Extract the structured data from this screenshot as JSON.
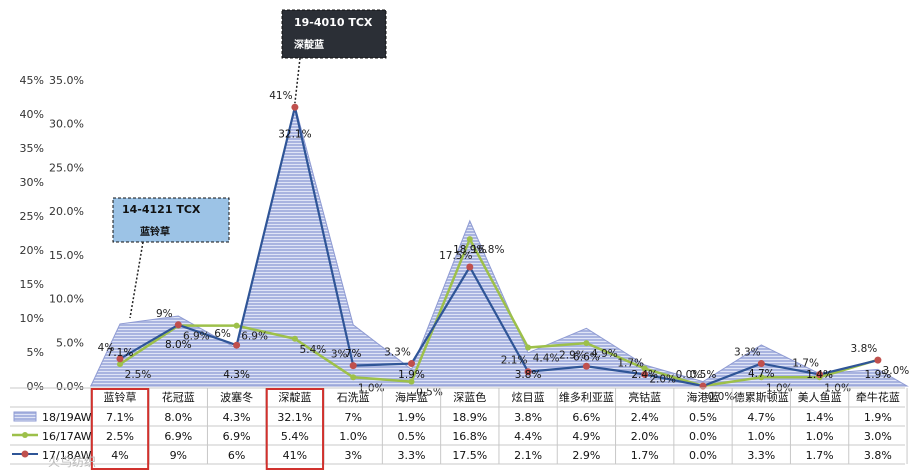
{
  "chart_data": {
    "type": "area",
    "categories": [
      "蓝铃草",
      "花冠蓝",
      "波塞冬",
      "深靛蓝",
      "石洗蓝",
      "海岸蓝",
      "深蓝色",
      "炫目蓝",
      "维多利亚蓝",
      "亮钴蓝",
      "海港蓝",
      "德累斯顿蓝",
      "美人鱼蓝",
      "牵牛花蓝"
    ],
    "series": [
      {
        "name": "18/19AW",
        "kind": "area",
        "axis": "left",
        "values": [
          7.1,
          8.0,
          4.3,
          32.1,
          7,
          1.9,
          18.9,
          3.8,
          6.6,
          2.4,
          0.5,
          4.7,
          1.4,
          1.9
        ],
        "labels": [
          "7.1%",
          "8.0%",
          "4.3%",
          "32.1%",
          "7%",
          "1.9%",
          "18.9%",
          "3.8%",
          "6.6%",
          "2.4%",
          "0.5%",
          "4.7%",
          "1.4%",
          "1.9%"
        ]
      },
      {
        "name": "16/17AW",
        "kind": "line",
        "axis": "left",
        "values": [
          2.5,
          6.9,
          6.9,
          5.4,
          1.0,
          0.5,
          16.8,
          4.4,
          4.9,
          2.0,
          0.0,
          1.0,
          1.0,
          3.0
        ],
        "labels": [
          "2.5%",
          "6.9%",
          "6.9%",
          "5.4%",
          "1.0%",
          "0.5%",
          "16.8%",
          "4.4%",
          "4.9%",
          "2.0%",
          "0.0%",
          "1.0%",
          "1.0%",
          "3.0%"
        ]
      },
      {
        "name": "17/18AW",
        "kind": "line",
        "axis": "right",
        "values": [
          4,
          9,
          6,
          41,
          3,
          3.3,
          17.5,
          2.1,
          2.9,
          1.7,
          0.0,
          3.3,
          1.7,
          3.8
        ],
        "labels": [
          "4%",
          "9%",
          "6%",
          "41%",
          "3%",
          "3.3%",
          "17.5%",
          "2.1%",
          "2.9%",
          "1.7%",
          "0.0%",
          "3.3%",
          "1.7%",
          "3.8%"
        ]
      }
    ],
    "table": {
      "rows": [
        {
          "name": "18/19AW",
          "cells": [
            "7.1%",
            "8.0%",
            "4.3%",
            "32.1%",
            "7%",
            "1.9%",
            "18.9%",
            "3.8%",
            "6.6%",
            "2.4%",
            "0.5%",
            "4.7%",
            "1.4%",
            "1.9%"
          ]
        },
        {
          "name": "16/17AW",
          "cells": [
            "2.5%",
            "6.9%",
            "6.9%",
            "5.4%",
            "1.0%",
            "0.5%",
            "16.8%",
            "4.4%",
            "4.9%",
            "2.0%",
            "0.0%",
            "1.0%",
            "1.0%",
            "3.0%"
          ]
        },
        {
          "name": "17/18AW",
          "cells": [
            "4%",
            "9%",
            "6%",
            "41%",
            "3%",
            "3.3%",
            "17.5%",
            "2.1%",
            "2.9%",
            "1.7%",
            "0.0%",
            "3.3%",
            "1.7%",
            "3.8%"
          ]
        }
      ]
    },
    "left_axis": {
      "ticks": [
        "0.0%",
        "5.0%",
        "10.0%",
        "15.0%",
        "20.0%",
        "25.0%",
        "30.0%",
        "35.0%"
      ],
      "range": [
        0,
        35
      ]
    },
    "right_axis": {
      "ticks": [
        "0%",
        "5%",
        "10%",
        "15%",
        "20%",
        "25%",
        "30%",
        "35%",
        "40%",
        "45%"
      ],
      "range": [
        0,
        45
      ]
    },
    "callouts": [
      {
        "title": "19-4010 TCX",
        "sub": "深靛蓝",
        "category": "深靛蓝"
      },
      {
        "title": "14-4121 TCX",
        "sub": "蓝铃草",
        "category": "蓝铃草"
      }
    ],
    "highlight_columns": [
      "蓝铃草",
      "深靛蓝"
    ],
    "grid": false,
    "legend": "table-left"
  },
  "colors": {
    "area_fill": "#a9b4e0",
    "area_stripe": "#c9d0ee",
    "area_stroke": "#8f9bd3",
    "line_1617": "#9dc04a",
    "line_1718": "#2f5597",
    "marker_1718": "#c0504d",
    "highlight_box": "#d0312d",
    "callout_dark": "#2b2f36",
    "callout_light": "#9cc3e6"
  },
  "watermark": "火鸟纺织"
}
